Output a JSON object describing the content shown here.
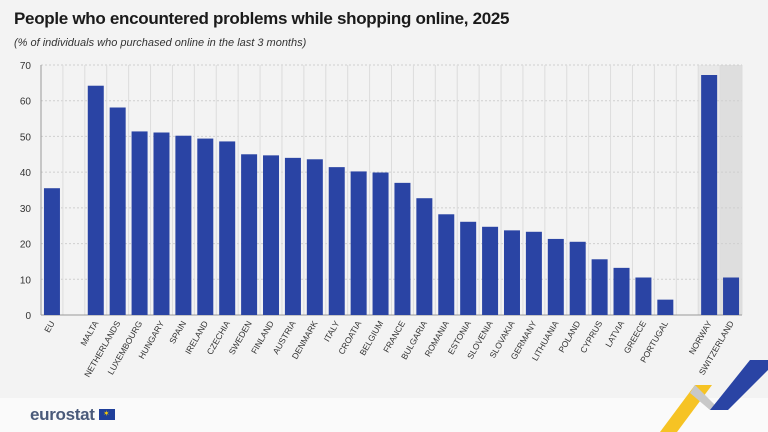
{
  "chart_data": {
    "type": "bar",
    "title": "People who encountered problems while shopping online, 2025",
    "subtitle": "(% of individuals who purchased online in the last 3 months)",
    "categories": [
      "EU",
      "MALTA",
      "NETHERLANDS",
      "LUXEMBOURG",
      "HUNGARY",
      "SPAIN",
      "IRELAND",
      "CZECHIA",
      "SWEDEN",
      "FINLAND",
      "AUSTRIA",
      "DENMARK",
      "ITALY",
      "CROATIA",
      "BELGIUM",
      "FRANCE",
      "BULGARIA",
      "ROMANIA",
      "ESTONIA",
      "SLOVENIA",
      "SLOVAKIA",
      "GERMANY",
      "LITHUANIA",
      "POLAND",
      "CYPRUS",
      "LATVIA",
      "GREECE",
      "PORTUGAL",
      "NORWAY",
      "SWITZERLAND"
    ],
    "values": [
      35.5,
      64.2,
      58.1,
      51.4,
      51.1,
      50.2,
      49.4,
      48.6,
      45.0,
      44.7,
      44.0,
      43.6,
      41.4,
      40.2,
      39.9,
      37.0,
      32.7,
      28.2,
      26.1,
      24.7,
      23.7,
      23.3,
      21.3,
      20.5,
      15.6,
      13.2,
      10.5,
      4.3,
      67.2,
      10.5
    ],
    "ylim": [
      0,
      70
    ],
    "yticks": [
      0,
      10,
      20,
      30,
      40,
      50,
      60,
      70
    ],
    "grid": true,
    "legend": "none",
    "bar_color": "#2a44a4",
    "shaded_categories": [
      "NORWAY",
      "SWITZERLAND"
    ]
  },
  "footer": {
    "logo": "eurostat"
  }
}
